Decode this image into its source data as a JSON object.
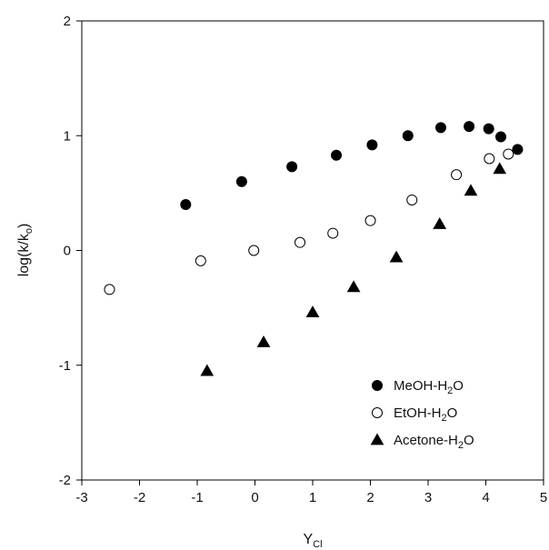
{
  "chart_data": {
    "type": "scatter",
    "title": "",
    "xlabel": {
      "main": "Y",
      "sub": "Cl"
    },
    "ylabel": {
      "prefix": "log(k/k",
      "sub": "o",
      "suffix": ")"
    },
    "xlim": [
      -3,
      5
    ],
    "ylim": [
      -2,
      2
    ],
    "x_ticks": [
      -3,
      -2,
      -1,
      0,
      1,
      2,
      3,
      4,
      5
    ],
    "y_ticks": [
      -2,
      -1,
      0,
      1,
      2
    ],
    "grid": false,
    "legend_position": "bottom-right",
    "series": [
      {
        "name": "MeOH-H2O",
        "label_parts": {
          "main": "MeOH-H",
          "sub": "2",
          "tail": "O"
        },
        "marker": "filled-circle",
        "points": [
          [
            -1.2,
            0.4
          ],
          [
            -0.23,
            0.6
          ],
          [
            0.64,
            0.73
          ],
          [
            1.41,
            0.83
          ],
          [
            2.03,
            0.92
          ],
          [
            2.65,
            1.0
          ],
          [
            3.22,
            1.07
          ],
          [
            3.71,
            1.08
          ],
          [
            4.05,
            1.06
          ],
          [
            4.26,
            0.99
          ],
          [
            4.55,
            0.88
          ]
        ]
      },
      {
        "name": "EtOH-H2O",
        "label_parts": {
          "main": "EtOH-H",
          "sub": "2",
          "tail": "O"
        },
        "marker": "open-circle",
        "points": [
          [
            -2.52,
            -0.34
          ],
          [
            -0.94,
            -0.09
          ],
          [
            -0.02,
            0.0
          ],
          [
            0.78,
            0.07
          ],
          [
            1.35,
            0.15
          ],
          [
            2.0,
            0.26
          ],
          [
            2.72,
            0.44
          ],
          [
            3.49,
            0.66
          ],
          [
            4.06,
            0.8
          ],
          [
            4.39,
            0.84
          ]
        ]
      },
      {
        "name": "Acetone-H2O",
        "label_parts": {
          "main": "Acetone-H",
          "sub": "2",
          "tail": "O"
        },
        "marker": "filled-triangle",
        "points": [
          [
            -0.83,
            -1.05
          ],
          [
            0.15,
            -0.8
          ],
          [
            1.0,
            -0.54
          ],
          [
            1.71,
            -0.32
          ],
          [
            2.45,
            -0.06
          ],
          [
            3.2,
            0.23
          ],
          [
            3.74,
            0.52
          ],
          [
            4.24,
            0.71
          ]
        ]
      }
    ]
  }
}
